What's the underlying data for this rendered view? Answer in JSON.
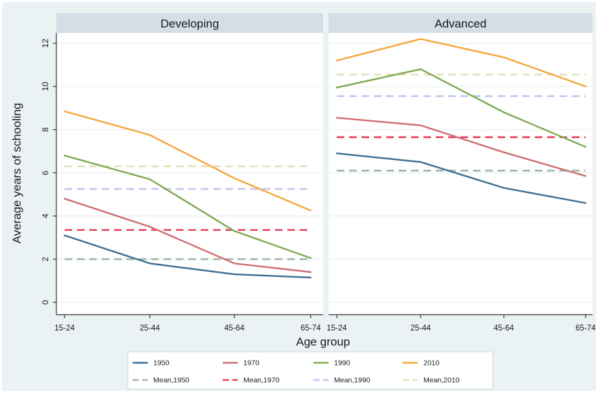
{
  "chart_data": {
    "type": "line",
    "ylabel": "Average years of schooling",
    "xlabel": "Age group",
    "categories": [
      "15-24",
      "25-44",
      "45-64",
      "65-74"
    ],
    "ylim": [
      0,
      12
    ],
    "yticks": [
      0,
      2,
      4,
      6,
      8,
      10,
      12
    ],
    "grid": true,
    "legend_position": "bottom",
    "panels": [
      {
        "title": "Developing",
        "series": [
          {
            "name": "1950",
            "values": [
              3.1,
              1.8,
              1.3,
              1.15
            ]
          },
          {
            "name": "1970",
            "values": [
              4.8,
              3.5,
              1.8,
              1.4
            ]
          },
          {
            "name": "1990",
            "values": [
              6.8,
              5.7,
              3.3,
              2.05
            ]
          },
          {
            "name": "2010",
            "values": [
              8.85,
              7.75,
              5.75,
              4.25
            ]
          }
        ],
        "means": [
          {
            "name": "Mean,1950",
            "value": 2.0
          },
          {
            "name": "Mean,1970",
            "value": 3.35
          },
          {
            "name": "Mean,1990",
            "value": 5.25
          },
          {
            "name": "Mean,2010",
            "value": 6.3
          }
        ]
      },
      {
        "title": "Advanced",
        "series": [
          {
            "name": "1950",
            "values": [
              6.9,
              6.5,
              5.3,
              4.6
            ]
          },
          {
            "name": "1970",
            "values": [
              8.55,
              8.2,
              6.95,
              5.85
            ]
          },
          {
            "name": "1990",
            "values": [
              9.95,
              10.8,
              8.8,
              7.2
            ]
          },
          {
            "name": "2010",
            "values": [
              11.2,
              12.2,
              11.35,
              10.0
            ]
          }
        ],
        "means": [
          {
            "name": "Mean,1950",
            "value": 6.1
          },
          {
            "name": "Mean,1970",
            "value": 7.65
          },
          {
            "name": "Mean,1990",
            "value": 9.55
          },
          {
            "name": "Mean,2010",
            "value": 10.55
          }
        ]
      }
    ],
    "legend": [
      {
        "label": "1950",
        "color": "#3b6f91",
        "dashed": false
      },
      {
        "label": "1970",
        "color": "#cf6e72",
        "dashed": false
      },
      {
        "label": "1990",
        "color": "#7faa52",
        "dashed": false
      },
      {
        "label": "2010",
        "color": "#f4a73c",
        "dashed": false
      },
      {
        "label": "Mean,1950",
        "color": "#9fb6a9",
        "dashed": true
      },
      {
        "label": "Mean,1970",
        "color": "#e84362",
        "dashed": true
      },
      {
        "label": "Mean,1990",
        "color": "#c3c6ee",
        "dashed": true
      },
      {
        "label": "Mean,2010",
        "color": "#e5e2b7",
        "dashed": true
      }
    ]
  }
}
